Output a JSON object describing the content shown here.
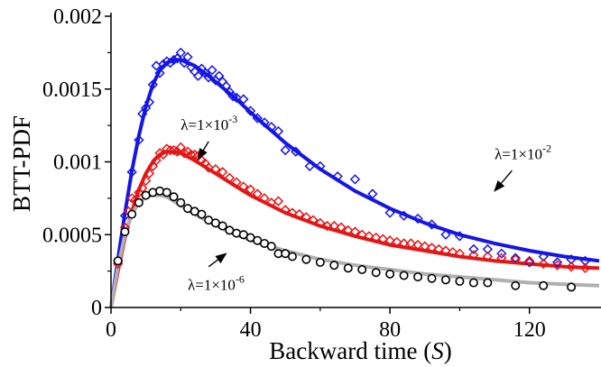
{
  "chart_data": {
    "type": "line",
    "title": "",
    "xlabel_prefix": "Backward time (",
    "xlabel_var": "S",
    "xlabel_suffix": ")",
    "ylabel": "BTT-PDF",
    "xlim": [
      0,
      140
    ],
    "ylim": [
      0,
      0.002
    ],
    "xticks": [
      0,
      40,
      80,
      120
    ],
    "xtick_labels": [
      "0",
      "40",
      "80",
      "120"
    ],
    "yticks": [
      0,
      0.0005,
      0.001,
      0.0015,
      0.002
    ],
    "ytick_labels": [
      "0",
      "0.0005",
      "0.001",
      "0.0015",
      "0.002"
    ],
    "grid": false,
    "series": [
      {
        "color": "#1515e6",
        "marker": "diamond",
        "curve": [
          [
            0,
            0
          ],
          [
            2,
            0.00033
          ],
          [
            4,
            0.00065
          ],
          [
            6,
            0.00094
          ],
          [
            8,
            0.00118
          ],
          [
            10,
            0.00138
          ],
          [
            12,
            0.00153
          ],
          [
            14,
            0.00163
          ],
          [
            16,
            0.00168
          ],
          [
            18,
            0.0017
          ],
          [
            20,
            0.0017
          ],
          [
            24,
            0.00166
          ],
          [
            28,
            0.00159
          ],
          [
            32,
            0.00151
          ],
          [
            36,
            0.00143
          ],
          [
            40,
            0.00134
          ],
          [
            50,
            0.00113
          ],
          [
            60,
            0.00095
          ],
          [
            70,
            0.0008
          ],
          [
            80,
            0.00068
          ],
          [
            90,
            0.00058
          ],
          [
            100,
            0.0005
          ],
          [
            110,
            0.00044
          ],
          [
            120,
            0.00039
          ],
          [
            130,
            0.00035
          ],
          [
            140,
            0.00032
          ]
        ],
        "points": [
          [
            2,
            0.00032
          ],
          [
            4,
            0.00063
          ],
          [
            6,
            0.00093
          ],
          [
            8,
            0.00115
          ],
          [
            9,
            0.00133
          ],
          [
            10,
            0.00137
          ],
          [
            11,
            0.00141
          ],
          [
            12,
            0.00153
          ],
          [
            13,
            0.00166
          ],
          [
            14,
            0.00161
          ],
          [
            15,
            0.00167
          ],
          [
            16,
            0.00169
          ],
          [
            17,
            0.00168
          ],
          [
            18,
            0.0017
          ],
          [
            19,
            0.00171
          ],
          [
            20,
            0.00175
          ],
          [
            21,
            0.00168
          ],
          [
            22,
            0.00172
          ],
          [
            23,
            0.00165
          ],
          [
            24,
            0.00162
          ],
          [
            25,
            0.00159
          ],
          [
            26,
            0.00164
          ],
          [
            27,
            0.00161
          ],
          [
            28,
            0.00158
          ],
          [
            29,
            0.00163
          ],
          [
            30,
            0.00156
          ],
          [
            31,
            0.00159
          ],
          [
            32,
            0.00155
          ],
          [
            33,
            0.00152
          ],
          [
            34,
            0.00148
          ],
          [
            35,
            0.00145
          ],
          [
            36,
            0.00144
          ],
          [
            38,
            0.00143
          ],
          [
            40,
            0.00135
          ],
          [
            42,
            0.0013
          ],
          [
            44,
            0.00127
          ],
          [
            46,
            0.00124
          ],
          [
            48,
            0.00121
          ],
          [
            50,
            0.00108
          ],
          [
            53,
            0.00107
          ],
          [
            57,
            0.00097
          ],
          [
            60,
            0.00097
          ],
          [
            65,
            0.0009
          ],
          [
            70,
            0.00088
          ],
          [
            75,
            0.00078
          ],
          [
            80,
            0.00065
          ],
          [
            84,
            0.00063
          ],
          [
            88,
            0.00061
          ],
          [
            92,
            0.00057
          ],
          [
            96,
            0.0005
          ],
          [
            100,
            0.00049
          ],
          [
            104,
            0.0004
          ],
          [
            108,
            0.0004
          ],
          [
            112,
            0.00037
          ],
          [
            116,
            0.00034
          ],
          [
            120,
            0.00031
          ],
          [
            124,
            0.00035
          ],
          [
            128,
            0.00031
          ],
          [
            132,
            0.00033
          ],
          [
            136,
            0.00032
          ]
        ],
        "label_base": "λ=1×10",
        "label_exp": "-2",
        "label_at": [
          110,
          0.00102
        ],
        "arrow_from": [
          115,
          0.00094
        ],
        "arrow_to": [
          110,
          0.0008
        ]
      },
      {
        "color": "#e61515",
        "marker": "diamond",
        "curve": [
          [
            0,
            0
          ],
          [
            2,
            0.00025
          ],
          [
            4,
            0.00048
          ],
          [
            6,
            0.00066
          ],
          [
            8,
            0.00081
          ],
          [
            10,
            0.00092
          ],
          [
            12,
            0.001
          ],
          [
            14,
            0.00105
          ],
          [
            16,
            0.00107
          ],
          [
            18,
            0.00107
          ],
          [
            20,
            0.00106
          ],
          [
            24,
            0.00101
          ],
          [
            28,
            0.00095
          ],
          [
            32,
            0.00089
          ],
          [
            36,
            0.00083
          ],
          [
            40,
            0.00077
          ],
          [
            50,
            0.00065
          ],
          [
            60,
            0.00056
          ],
          [
            70,
            0.00049
          ],
          [
            80,
            0.00043
          ],
          [
            90,
            0.00039
          ],
          [
            100,
            0.00035
          ],
          [
            110,
            0.00032
          ],
          [
            120,
            0.0003
          ],
          [
            130,
            0.00028
          ],
          [
            140,
            0.00027
          ]
        ],
        "points": [
          [
            2,
            0.0003
          ],
          [
            4,
            0.00055
          ],
          [
            5,
            0.00066
          ],
          [
            6,
            0.00075
          ],
          [
            7,
            0.00074
          ],
          [
            8,
            0.00079
          ],
          [
            9,
            0.00082
          ],
          [
            10,
            0.00087
          ],
          [
            11,
            0.00092
          ],
          [
            12,
            0.00097
          ],
          [
            13,
            0.00101
          ],
          [
            14,
            0.00106
          ],
          [
            15,
            0.00105
          ],
          [
            16,
            0.00109
          ],
          [
            17,
            0.00108
          ],
          [
            18,
            0.00108
          ],
          [
            19,
            0.00107
          ],
          [
            20,
            0.0011
          ],
          [
            21,
            0.00106
          ],
          [
            22,
            0.00107
          ],
          [
            23,
            0.00105
          ],
          [
            24,
            0.00105
          ],
          [
            25,
            0.00104
          ],
          [
            26,
            0.00101
          ],
          [
            27,
            0.00099
          ],
          [
            28,
            0.00096
          ],
          [
            30,
            0.00095
          ],
          [
            32,
            0.00093
          ],
          [
            34,
            0.00089
          ],
          [
            36,
            0.00086
          ],
          [
            38,
            0.00083
          ],
          [
            40,
            0.00081
          ],
          [
            42,
            0.00078
          ],
          [
            44,
            0.00075
          ],
          [
            46,
            0.00072
          ],
          [
            48,
            0.00073
          ],
          [
            50,
            0.00067
          ],
          [
            52,
            0.00065
          ],
          [
            54,
            0.00064
          ],
          [
            56,
            0.00062
          ],
          [
            58,
            0.0006
          ],
          [
            60,
            0.00058
          ],
          [
            62,
            0.00056
          ],
          [
            64,
            0.00056
          ],
          [
            66,
            0.00055
          ],
          [
            68,
            0.00053
          ],
          [
            70,
            0.00052
          ],
          [
            72,
            0.0005
          ],
          [
            74,
            0.00049
          ],
          [
            76,
            0.00048
          ],
          [
            78,
            0.00047
          ],
          [
            80,
            0.00046
          ],
          [
            82,
            0.00045
          ],
          [
            84,
            0.00044
          ],
          [
            86,
            0.00044
          ],
          [
            88,
            0.00043
          ],
          [
            90,
            0.00042
          ],
          [
            92,
            0.00041
          ],
          [
            94,
            0.0004
          ],
          [
            96,
            0.00039
          ],
          [
            98,
            0.00038
          ],
          [
            100,
            0.00037
          ],
          [
            104,
            0.00036
          ],
          [
            108,
            0.00035
          ],
          [
            112,
            0.00034
          ],
          [
            116,
            0.00033
          ],
          [
            120,
            0.00032
          ],
          [
            124,
            0.0003
          ],
          [
            128,
            0.00029
          ],
          [
            132,
            0.00028
          ],
          [
            136,
            0.00027
          ]
        ],
        "label_base": "λ=1×10",
        "label_exp": "-3",
        "label_at": [
          20,
          0.00122
        ],
        "arrow_from": [
          28,
          0.00114
        ],
        "arrow_to": [
          25,
          0.00102
        ]
      },
      {
        "color": "#a6a6a6",
        "marker": "circle",
        "curve": [
          [
            0,
            0
          ],
          [
            2,
            0.00028
          ],
          [
            4,
            0.0005
          ],
          [
            6,
            0.00064
          ],
          [
            8,
            0.00072
          ],
          [
            10,
            0.00076
          ],
          [
            12,
            0.00077
          ],
          [
            14,
            0.00077
          ],
          [
            16,
            0.00076
          ],
          [
            18,
            0.00073
          ],
          [
            20,
            0.0007
          ],
          [
            24,
            0.00064
          ],
          [
            28,
            0.00059
          ],
          [
            32,
            0.00054
          ],
          [
            36,
            0.0005
          ],
          [
            40,
            0.00046
          ],
          [
            50,
            0.00039
          ],
          [
            60,
            0.00033
          ],
          [
            70,
            0.00029
          ],
          [
            80,
            0.00026
          ],
          [
            90,
            0.00023
          ],
          [
            100,
            0.00021
          ],
          [
            110,
            0.00019
          ],
          [
            120,
            0.00017
          ],
          [
            130,
            0.00016
          ],
          [
            140,
            0.00015
          ]
        ],
        "points": [
          [
            2,
            0.00032
          ],
          [
            4,
            0.00052
          ],
          [
            6,
            0.00064
          ],
          [
            8,
            0.00072
          ],
          [
            10,
            0.00077
          ],
          [
            12,
            0.00079
          ],
          [
            14,
            0.0008
          ],
          [
            16,
            0.00079
          ],
          [
            18,
            0.00076
          ],
          [
            20,
            0.00072
          ],
          [
            22,
            0.00068
          ],
          [
            24,
            0.00066
          ],
          [
            26,
            0.00064
          ],
          [
            28,
            0.0006
          ],
          [
            30,
            0.00058
          ],
          [
            32,
            0.00056
          ],
          [
            34,
            0.00053
          ],
          [
            36,
            0.00051
          ],
          [
            38,
            0.0005
          ],
          [
            40,
            0.00048
          ],
          [
            42,
            0.00046
          ],
          [
            44,
            0.00044
          ],
          [
            46,
            0.00042
          ],
          [
            48,
            0.00037
          ],
          [
            50,
            0.00037
          ],
          [
            52,
            0.00035
          ],
          [
            56,
            0.00033
          ],
          [
            60,
            0.00031
          ],
          [
            64,
            0.00029
          ],
          [
            68,
            0.00027
          ],
          [
            72,
            0.00026
          ],
          [
            76,
            0.00024
          ],
          [
            80,
            0.00023
          ],
          [
            84,
            0.00022
          ],
          [
            88,
            0.00021
          ],
          [
            92,
            0.0002
          ],
          [
            96,
            0.00019
          ],
          [
            100,
            0.00018
          ],
          [
            104,
            0.00017
          ],
          [
            108,
            0.00017
          ],
          [
            116,
            0.00015
          ],
          [
            124,
            0.00015
          ],
          [
            132,
            0.00014
          ]
        ],
        "fit_color": "#b0b0b0",
        "marker_color": "#000000",
        "label_base": "λ=1×10",
        "label_exp": "-6",
        "label_at": [
          22,
          0.00012
        ],
        "arrow_from": [
          28,
          0.00028
        ],
        "arrow_to": [
          33,
          0.00037
        ]
      }
    ]
  }
}
